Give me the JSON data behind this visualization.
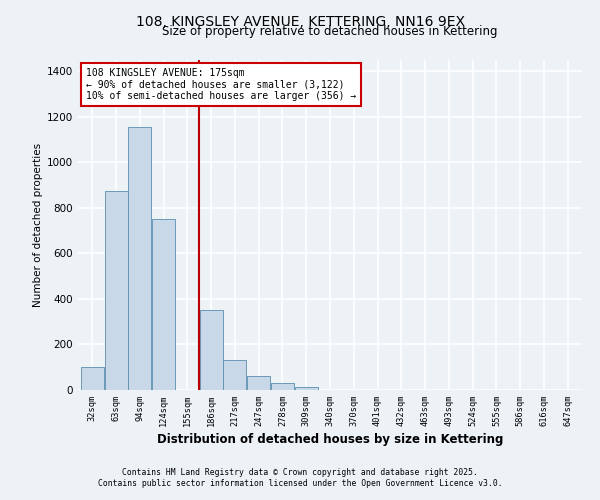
{
  "title": "108, KINGSLEY AVENUE, KETTERING, NN16 9EX",
  "subtitle": "Size of property relative to detached houses in Kettering",
  "xlabel": "Distribution of detached houses by size in Kettering",
  "ylabel": "Number of detached properties",
  "bin_labels": [
    "32sqm",
    "63sqm",
    "94sqm",
    "124sqm",
    "155sqm",
    "186sqm",
    "217sqm",
    "247sqm",
    "278sqm",
    "309sqm",
    "340sqm",
    "370sqm",
    "401sqm",
    "432sqm",
    "463sqm",
    "493sqm",
    "524sqm",
    "555sqm",
    "586sqm",
    "616sqm",
    "647sqm"
  ],
  "bar_values": [
    100,
    875,
    1155,
    750,
    0,
    350,
    130,
    60,
    30,
    15,
    0,
    0,
    0,
    0,
    0,
    0,
    0,
    0,
    0,
    0,
    0
  ],
  "bar_color": "#c8d8e8",
  "bar_edge_color": "#5b8db0",
  "ylim": [
    0,
    1450
  ],
  "yticks": [
    0,
    200,
    400,
    600,
    800,
    1000,
    1200,
    1400
  ],
  "property_line_x": 4.5,
  "property_line_color": "#bb0000",
  "annotation_title": "108 KINGSLEY AVENUE: 175sqm",
  "annotation_line1": "← 90% of detached houses are smaller (3,122)",
  "annotation_line2": "10% of semi-detached houses are larger (356) →",
  "annotation_box_color": "#ffffff",
  "annotation_box_edge": "#cc0000",
  "bg_color": "#edf2f7",
  "footer1": "Contains HM Land Registry data © Crown copyright and database right 2025.",
  "footer2": "Contains public sector information licensed under the Open Government Licence v3.0."
}
